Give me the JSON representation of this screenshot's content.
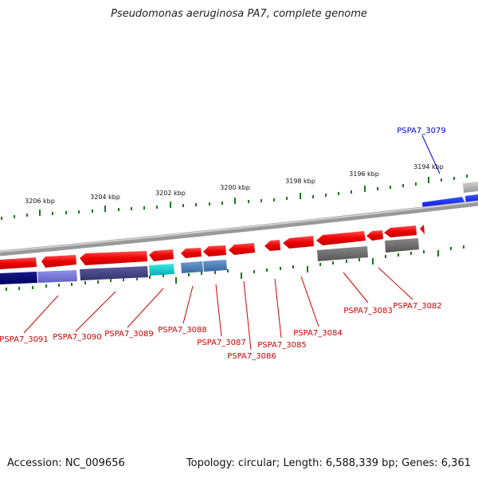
{
  "title": "Pseudomonas aeruginosa PA7, complete genome",
  "accession": "Accession: NC_009656",
  "topology": "Topology: circular; Length: 6,588,339 bp; Genes: 6,361",
  "colors": {
    "backbone": "#8a8a8a",
    "tick": "#1a7a1a",
    "forward_gene": "#e00000",
    "highlight_gene": "#0000dd",
    "label_red": "#cc0000",
    "label_blue": "#0000cc"
  },
  "scale_labels": [
    "3206 kbp",
    "3204 kbp",
    "3202 kbp",
    "3200 kbp",
    "3198 kbp",
    "3196 kbp",
    "3194 kbp"
  ],
  "gene_labels": [
    {
      "id": "PSPA7_3079",
      "color": "blue"
    },
    {
      "id": "PSPA7_3082",
      "color": "red"
    },
    {
      "id": "PSPA7_3083",
      "color": "red"
    },
    {
      "id": "PSPA7_3084",
      "color": "red"
    },
    {
      "id": "PSPA7_3085",
      "color": "red"
    },
    {
      "id": "PSPA7_3086",
      "color": "red"
    },
    {
      "id": "PSPA7_3087",
      "color": "red"
    },
    {
      "id": "PSPA7_3088",
      "color": "red"
    },
    {
      "id": "PSPA7_3089",
      "color": "red"
    },
    {
      "id": "PSPA7_3090",
      "color": "red"
    },
    {
      "id": "PSPA7_3091",
      "color": "red"
    }
  ]
}
